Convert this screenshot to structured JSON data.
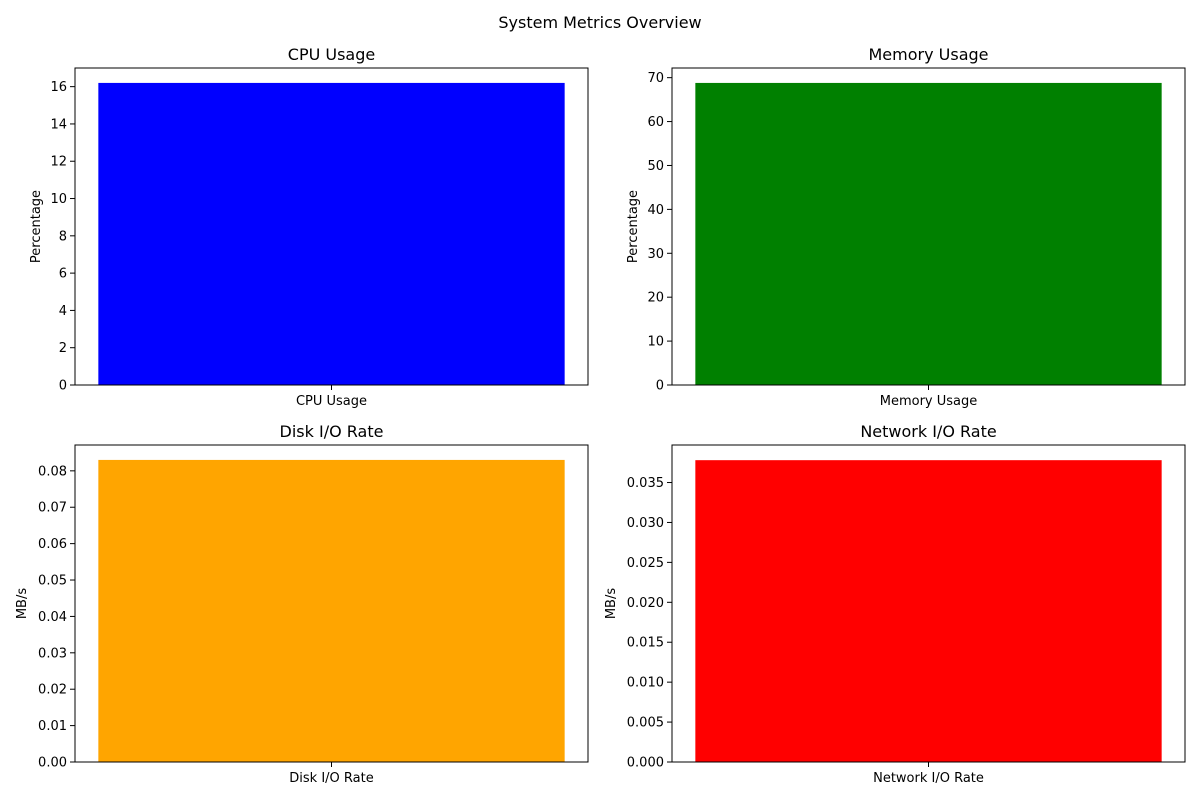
{
  "figure": {
    "title": "System Metrics Overview"
  },
  "chart_data": [
    {
      "type": "bar",
      "title": "CPU Usage",
      "ylabel": "Percentage",
      "categories": [
        "CPU Usage"
      ],
      "values": [
        16.2
      ],
      "ylim": [
        0,
        17.0
      ],
      "yticks": [
        0,
        2,
        4,
        6,
        8,
        10,
        12,
        14,
        16
      ],
      "ytick_labels": [
        "0",
        "2",
        "4",
        "6",
        "8",
        "10",
        "12",
        "14",
        "16"
      ],
      "color": "#0000ff",
      "grid": false
    },
    {
      "type": "bar",
      "title": "Memory Usage",
      "ylabel": "Percentage",
      "categories": [
        "Memory Usage"
      ],
      "values": [
        68.8
      ],
      "ylim": [
        0,
        72.2
      ],
      "yticks": [
        0,
        10,
        20,
        30,
        40,
        50,
        60,
        70
      ],
      "ytick_labels": [
        "0",
        "10",
        "20",
        "30",
        "40",
        "50",
        "60",
        "70"
      ],
      "color": "#008000",
      "grid": false
    },
    {
      "type": "bar",
      "title": "Disk I/O Rate",
      "ylabel": "MB/s",
      "categories": [
        "Disk I/O Rate"
      ],
      "values": [
        0.083
      ],
      "ylim": [
        0,
        0.0871
      ],
      "yticks": [
        0,
        0.01,
        0.02,
        0.03,
        0.04,
        0.05,
        0.06,
        0.07,
        0.08
      ],
      "ytick_labels": [
        "0.00",
        "0.01",
        "0.02",
        "0.03",
        "0.04",
        "0.05",
        "0.06",
        "0.07",
        "0.08"
      ],
      "color": "#ffa500",
      "grid": false
    },
    {
      "type": "bar",
      "title": "Network I/O Rate",
      "ylabel": "MB/s",
      "categories": [
        "Network I/O Rate"
      ],
      "values": [
        0.0378
      ],
      "ylim": [
        0,
        0.0397
      ],
      "yticks": [
        0,
        0.005,
        0.01,
        0.015,
        0.02,
        0.025,
        0.03,
        0.035
      ],
      "ytick_labels": [
        "0.000",
        "0.005",
        "0.010",
        "0.015",
        "0.020",
        "0.025",
        "0.030",
        "0.035"
      ],
      "color": "#ff0000",
      "grid": false
    }
  ]
}
